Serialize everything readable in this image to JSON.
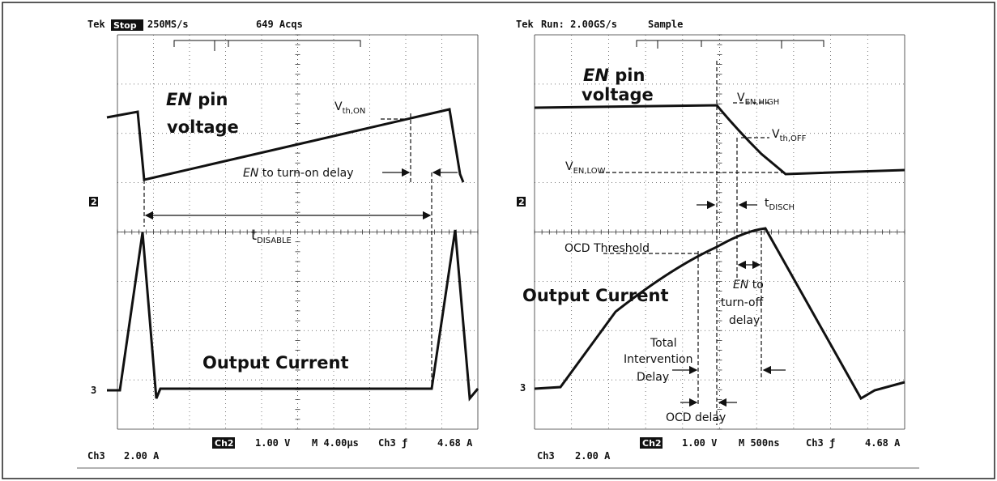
{
  "left": {
    "brand": "Tek",
    "mode": "Stop",
    "rate": "250MS/s",
    "acqs": "649 Acqs",
    "en_label": {
      "italic": "EN",
      "rest": " pin",
      "line2": "voltage"
    },
    "vth_on": {
      "main": "V",
      "sub": "th,ON"
    },
    "turn_on_delay": {
      "italic": "EN",
      "rest": " to turn-on delay"
    },
    "t_disable": {
      "main": "t",
      "sub": "DISABLE"
    },
    "output_current": "Output Current",
    "marker2": "2",
    "marker3": "3",
    "footer": {
      "ch3": "Ch3",
      "ch3_scale": "2.00 A",
      "ch2": "Ch2",
      "ch2_scale": "1.00 V",
      "time": "M 4.00µs",
      "trig": "Ch3 ƒ",
      "level": "4.68 A"
    }
  },
  "right": {
    "brand": "Tek",
    "mode": "Run: 2.00GS/s",
    "acq": "Sample",
    "en_label": {
      "italic": "EN",
      "rest": " pin",
      "line2": "voltage"
    },
    "ven_high": {
      "main": "V",
      "sub": "EN,HIGH"
    },
    "vth_off": {
      "main": "V",
      "sub": "th,OFF"
    },
    "ven_low": {
      "main": "V",
      "sub": "EN,LOW"
    },
    "t_disch": {
      "main": "t",
      "sub": "DISCH"
    },
    "ocd_threshold": "OCD Threshold",
    "output_current": "Output Current",
    "turn_off_delay": {
      "italic": "EN",
      "line1": " to",
      "line2": "turn-off",
      "line3": "delay"
    },
    "total_delay": {
      "line1": "Total",
      "line2": "Intervention",
      "line3": "Delay"
    },
    "ocd_delay": "OCD delay",
    "marker2": "2",
    "marker3": "3",
    "footer": {
      "ch3": "Ch3",
      "ch3_scale": "2.00 A",
      "ch2": "Ch2",
      "ch2_scale": "1.00 V",
      "time": "M  500ns",
      "trig": "Ch3 ƒ",
      "level": "4.68 A"
    }
  }
}
